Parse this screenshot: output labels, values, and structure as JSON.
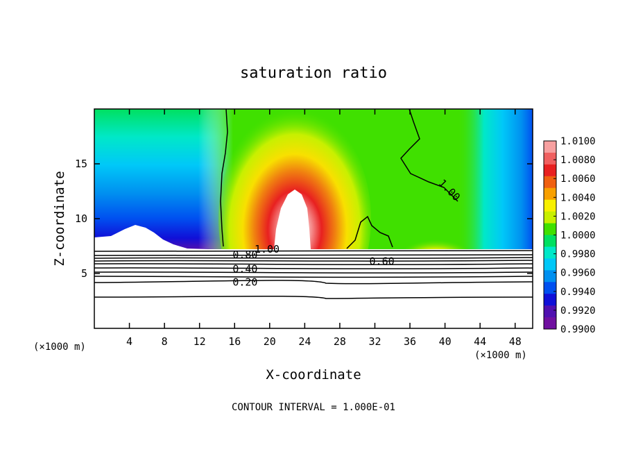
{
  "chart_data": {
    "type": "heatmap",
    "title": "saturation ratio",
    "xlabel": "X-coordinate",
    "ylabel": "Z-coordinate",
    "x_unit_left": "(×1000 m)",
    "x_unit_right": "(×1000 m)",
    "xlim": [
      0,
      50
    ],
    "ylim": [
      0,
      20
    ],
    "x_ticks": [
      4,
      8,
      12,
      16,
      20,
      24,
      28,
      32,
      36,
      40,
      44,
      48
    ],
    "y_ticks": [
      5,
      10,
      15
    ],
    "footer": "CONTOUR INTERVAL = 1.000E-01",
    "colorbar": {
      "levels": [
        "1.0100",
        "1.0080",
        "1.0060",
        "1.0040",
        "1.0020",
        "1.0000",
        "0.9980",
        "0.9960",
        "0.9940",
        "0.9920",
        "0.9900"
      ],
      "colors": [
        "#f7a0a0",
        "#f06060",
        "#e82020",
        "#f06010",
        "#f8a000",
        "#f8f000",
        "#c8f000",
        "#40e000",
        "#00e060",
        "#00e8c8",
        "#00c8f8",
        "#0090f0",
        "#0050f0",
        "#1010d8",
        "#5010b0",
        "#7010a0"
      ]
    },
    "contour_labels": [
      {
        "text": "1.00",
        "x": 19.7,
        "z": 7.2
      },
      {
        "text": "1.00",
        "x": 40.5,
        "z": 12.6
      },
      {
        "text": "0.80",
        "x": 17.2,
        "z": 6.7
      },
      {
        "text": "0.60",
        "x": 32.8,
        "z": 6.1
      },
      {
        "text": "0.40",
        "x": 17.2,
        "z": 5.4
      },
      {
        "text": "0.20",
        "x": 17.2,
        "z": 4.2
      }
    ],
    "shaded_region": "saturation ratio 0.990–1.010 above cloud base (z ≈ 7–20); below cloud base shown as labelled contour lines"
  }
}
